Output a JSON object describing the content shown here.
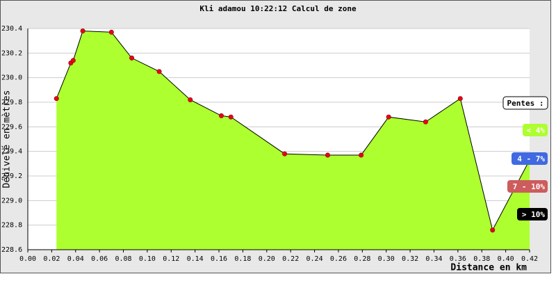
{
  "chart_data": {
    "type": "area",
    "title": "Kli adamou 10:22:12 Calcul de zone",
    "y_label": "Dénivelé en mètres",
    "x_label": "Distance en km",
    "x": [
      0.024,
      0.036,
      0.038,
      0.046,
      0.07,
      0.087,
      0.11,
      0.136,
      0.162,
      0.17,
      0.215,
      0.251,
      0.279,
      0.302,
      0.333,
      0.362,
      0.389,
      0.42
    ],
    "values": [
      229.83,
      230.12,
      230.14,
      230.38,
      230.37,
      230.16,
      230.05,
      229.82,
      229.69,
      229.68,
      229.38,
      229.37,
      229.37,
      229.68,
      229.64,
      229.83,
      228.76,
      229.33
    ],
    "color": "#adff2f",
    "line_color": "#000000",
    "marker_color": "#e8001c",
    "xlim": [
      0,
      0.42
    ],
    "xticks": [
      {
        "value": 0,
        "label": "0.00"
      },
      0.02,
      0.04,
      0.06,
      0.08,
      {
        "value": 0.1,
        "label": "0.10"
      },
      0.12,
      0.14,
      0.16,
      0.18,
      {
        "value": 0.2,
        "label": "0.20"
      },
      0.22,
      0.24,
      0.26,
      0.28,
      {
        "value": 0.3,
        "label": "0.30"
      },
      0.32,
      0.34,
      0.36,
      0.38,
      {
        "value": 0.4,
        "label": "0.40"
      },
      0.42
    ],
    "ylim": [
      228.6,
      230.4
    ],
    "yticks": [
      228.6,
      228.8,
      {
        "value": 229,
        "label": "229.0"
      },
      229.2,
      229.4,
      229.6,
      229.8,
      {
        "value": 230,
        "label": "230.0"
      },
      230.2,
      230.4
    ],
    "grid": true,
    "legend": {
      "title": "Pentes :",
      "items": [
        {
          "label": "< 4%",
          "color": "#adff2f"
        },
        {
          "label": "4 - 7%",
          "color": "#4169e1"
        },
        {
          "label": "7 - 10%",
          "color": "#cd5c5c"
        },
        {
          "label": "> 10%",
          "color": "#000000"
        }
      ]
    }
  }
}
